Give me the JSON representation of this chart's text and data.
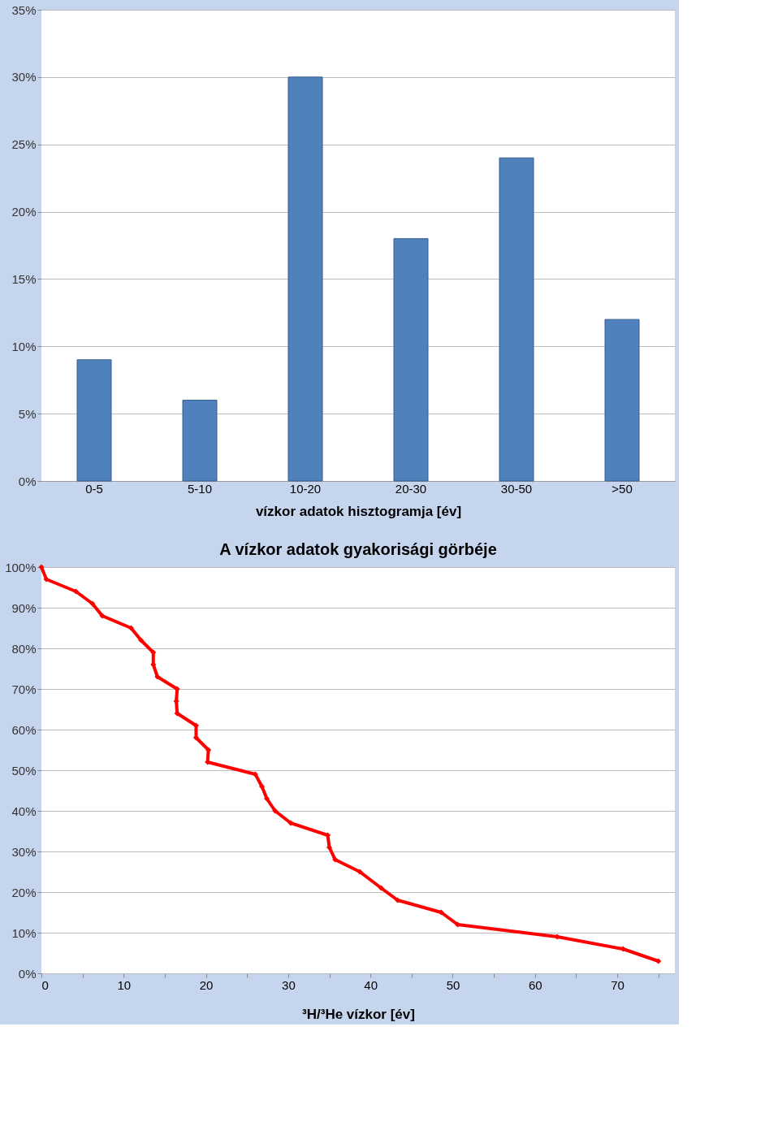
{
  "chart_data": [
    {
      "type": "bar",
      "xlabel": "vízkor adatok hisztogramja [év]",
      "categories": [
        "0-5",
        "5-10",
        "10-20",
        "20-30",
        "30-50",
        ">50"
      ],
      "values": [
        9,
        6,
        30,
        18,
        24,
        12
      ],
      "color": "#4f81bd",
      "ylim": [
        0,
        35
      ],
      "yticks": [
        {
          "value": 0,
          "label": "0%"
        },
        {
          "value": 5,
          "label": "5%"
        },
        {
          "value": 10,
          "label": "10%"
        },
        {
          "value": 15,
          "label": "15%"
        },
        {
          "value": 20,
          "label": "20%"
        },
        {
          "value": 25,
          "label": "25%"
        },
        {
          "value": 30,
          "label": "30%"
        },
        {
          "value": 35,
          "label": "35%"
        }
      ],
      "grid": "y"
    },
    {
      "type": "line",
      "title": "A vízkor adatok gyakorisági görbéje",
      "xlabel": "³H/³He vízkor [év]",
      "x": [
        0,
        0.6,
        4.2,
        6.2,
        7.4,
        10.9,
        12.1,
        13.6,
        13.6,
        14.1,
        16.5,
        16.4,
        16.5,
        18.8,
        18.8,
        20.3,
        20.2,
        26,
        26.8,
        27.4,
        28.4,
        30.3,
        34.8,
        35,
        35.7,
        38.7,
        41.3,
        43.3,
        48.6,
        50.6,
        62.7,
        70.7,
        75
      ],
      "values": [
        100,
        97,
        94,
        91,
        88,
        85,
        82,
        79,
        76,
        73,
        70,
        67,
        64,
        61,
        58,
        55,
        52,
        49,
        46,
        43,
        40,
        37,
        34,
        31,
        28,
        25,
        21,
        18,
        15,
        12,
        9,
        6,
        3
      ],
      "color": "#ff0000",
      "marker": "diamond",
      "line_style": "solid",
      "xlim": [
        0,
        77
      ],
      "xticks": [
        0,
        {
          "value": 5,
          "label": null
        },
        10,
        {
          "value": 15,
          "label": null
        },
        20,
        {
          "value": 25,
          "label": null
        },
        30,
        {
          "value": 35,
          "label": null
        },
        40,
        {
          "value": 45,
          "label": null
        },
        50,
        {
          "value": 55,
          "label": null
        },
        60,
        {
          "value": 65,
          "label": null
        },
        70,
        {
          "value": 75,
          "label": null
        }
      ],
      "ylim": [
        0,
        100
      ],
      "yticks": [
        {
          "value": 0,
          "label": "0%"
        },
        {
          "value": 10,
          "label": "10%"
        },
        {
          "value": 20,
          "label": "20%"
        },
        {
          "value": 30,
          "label": "30%"
        },
        {
          "value": 40,
          "label": "40%"
        },
        {
          "value": 50,
          "label": "50%"
        },
        {
          "value": 60,
          "label": "60%"
        },
        {
          "value": 70,
          "label": "70%"
        },
        {
          "value": 80,
          "label": "80%"
        },
        {
          "value": 90,
          "label": "90%"
        },
        {
          "value": 100,
          "label": "100%"
        }
      ],
      "grid": "y"
    }
  ]
}
